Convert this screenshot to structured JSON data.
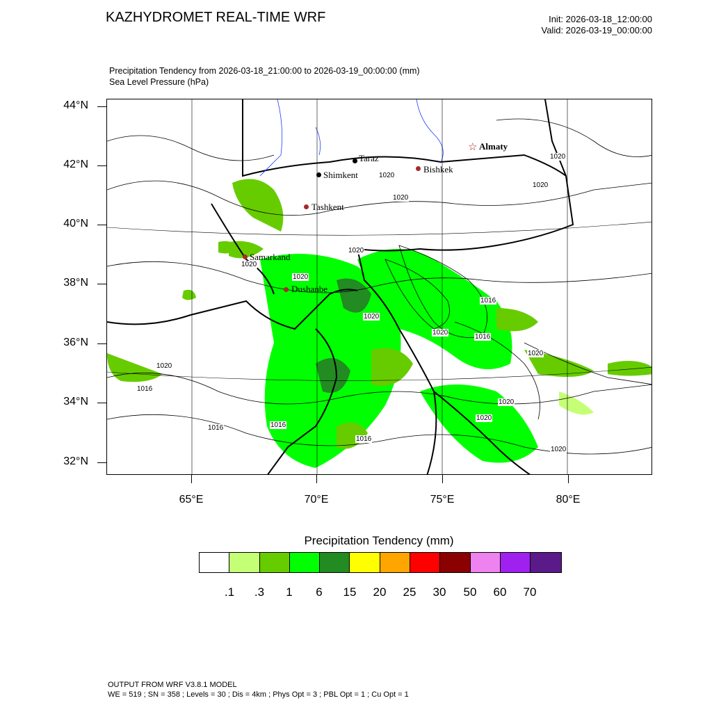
{
  "header": {
    "title": "KAZHYDROMET REAL-TIME WRF",
    "init": "Init: 2026-03-18_12:00:00",
    "valid": "Valid: 2026-03-19_00:00:00",
    "subtitle_line1": "Precipitation Tendency from 2026-03-18_21:00:00 to 2026-03-19_00:00:00   (mm)",
    "subtitle_line2": "Sea Level Pressure   (hPa)"
  },
  "map": {
    "lat_labels": [
      "44°N",
      "42°N",
      "40°N",
      "38°N",
      "36°N",
      "34°N",
      "32°N"
    ],
    "lon_labels": [
      "65°E",
      "70°E",
      "75°E",
      "80°E"
    ],
    "cities": [
      {
        "name": "Almaty",
        "marker": "star",
        "color": "#b22222"
      },
      {
        "name": "Taraz",
        "marker": "dot",
        "color": "#000000"
      },
      {
        "name": "Shimkent",
        "marker": "dot",
        "color": "#000000"
      },
      {
        "name": "Bishkek",
        "marker": "dot",
        "color": "#a52a2a"
      },
      {
        "name": "Tashkent",
        "marker": "dot",
        "color": "#a52a2a"
      },
      {
        "name": "Samarkand",
        "marker": "dot",
        "color": "#a52a2a"
      },
      {
        "name": "Dushanbe",
        "marker": "dot",
        "color": "#a52a2a"
      }
    ],
    "isobar_labels": [
      "1020",
      "1020",
      "1020",
      "1020",
      "1020",
      "1020",
      "1020",
      "1016",
      "1020",
      "1016",
      "1020",
      "1020",
      "1020",
      "1016",
      "1016",
      "1016",
      "1016",
      "1020",
      "1020",
      "1020"
    ]
  },
  "legend": {
    "title": "Precipitation Tendency  (mm)",
    "labels": [
      ".1",
      ".3",
      "1",
      "6",
      "15",
      "20",
      "25",
      "30",
      "50",
      "60",
      "70"
    ],
    "colors": [
      "#ffffff",
      "#c5ff75",
      "#66cc00",
      "#00ff00",
      "#228b22",
      "#ffff00",
      "#ffa500",
      "#ff0000",
      "#8b0000",
      "#ee82ee",
      "#a020f0",
      "#5a1a8a"
    ]
  },
  "footer": {
    "line1": "OUTPUT FROM WRF V3.8.1 MODEL",
    "line2": "WE = 519 ; SN = 358 ; Levels = 30 ; Dis = 4km ; Phys Opt = 3 ; PBL Opt = 1 ; Cu Opt = 1"
  }
}
